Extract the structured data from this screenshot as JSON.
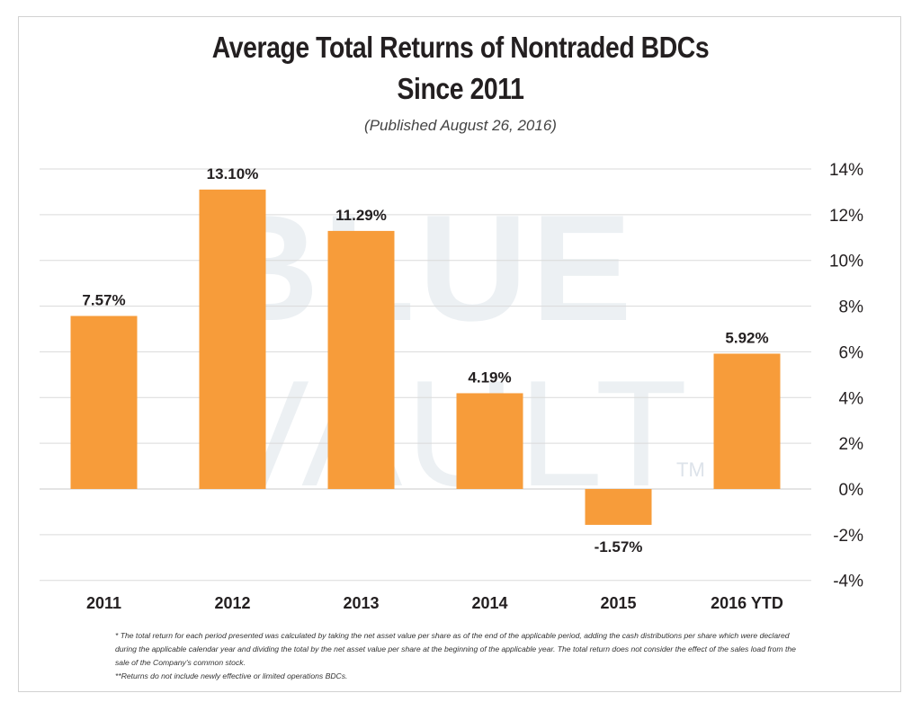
{
  "chart_data": {
    "type": "bar",
    "title": "Average Total Returns of Nontraded BDCs",
    "title_line2": "Since 2011",
    "subtitle": "(Published August 26, 2016)",
    "categories": [
      "2011",
      "2012",
      "2013",
      "2014",
      "2015",
      "2016 YTD"
    ],
    "values": [
      7.57,
      13.1,
      11.29,
      4.19,
      -1.57,
      5.92
    ],
    "data_labels": [
      "7.57%",
      "13.10%",
      "11.29%",
      "4.19%",
      "-1.57%",
      "5.92%"
    ],
    "y_ticks": [
      14,
      12,
      10,
      8,
      6,
      4,
      2,
      0,
      -2,
      -4
    ],
    "y_tick_labels": [
      "14%",
      "12%",
      "10%",
      "8%",
      "6%",
      "4%",
      "2%",
      "0%",
      "-2%",
      "-4%"
    ],
    "ylim": [
      -4,
      14
    ],
    "y_axis_side": "right",
    "grid": true,
    "bar_color": "#f79c3a",
    "watermark": [
      "BLUE",
      "VAULT",
      "TM"
    ]
  },
  "footnotes": [
    "* The total return for each period presented was calculated by taking the net asset value per share as of the end of the applicable period, adding the cash distributions per share which were declared during the applicable calendar year and dividing the total by the net asset value per share at the beginning of the applicable year. The total return does not consider the effect of the sales load from the sale of the Company's common stock.",
    "**Returns do not include newly effective or limited operations BDCs."
  ]
}
